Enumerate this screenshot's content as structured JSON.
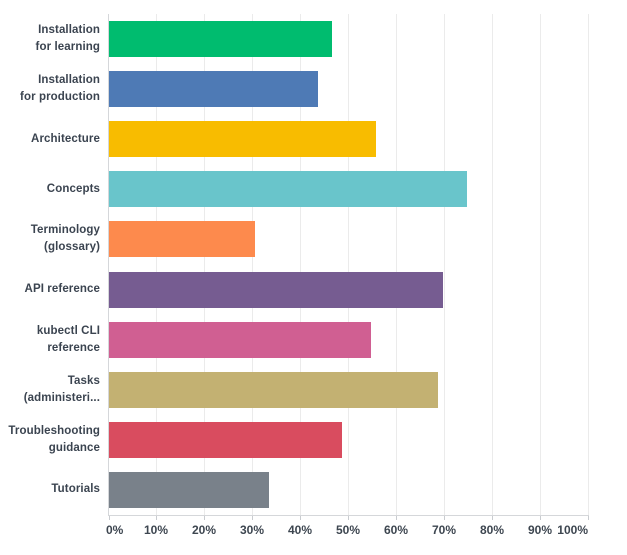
{
  "chart_data": {
    "type": "bar",
    "orientation": "horizontal",
    "title": "",
    "xlabel": "",
    "ylabel": "",
    "legend": "none",
    "grid": "vertical, every 10%",
    "xlim": [
      0,
      100
    ],
    "x_ticks": [
      "0%",
      "10%",
      "20%",
      "30%",
      "40%",
      "50%",
      "60%",
      "70%",
      "80%",
      "90%",
      "100%"
    ],
    "unit": "%",
    "categories": [
      "Installation for learning",
      "Installation for production",
      "Architecture",
      "Concepts",
      "Terminology (glossary)",
      "API reference",
      "kubectl CLI reference",
      "Tasks (administeri...",
      "Troubleshooting guidance",
      "Tutorials"
    ],
    "category_label_lines": [
      [
        "Installation",
        "for learning"
      ],
      [
        "Installation",
        "for production"
      ],
      [
        "Architecture"
      ],
      [
        "Concepts"
      ],
      [
        "Terminology",
        "(glossary)"
      ],
      [
        "API reference"
      ],
      [
        "kubectl CLI",
        "reference"
      ],
      [
        "Tasks",
        "(administeri..."
      ],
      [
        "Troubleshooting",
        "guidance"
      ],
      [
        "Tutorials"
      ]
    ],
    "values": [
      46.5,
      43.5,
      55.6,
      74.6,
      30.4,
      69.6,
      54.6,
      68.5,
      48.5,
      33.3
    ],
    "bar_colors": [
      "#00BC6F",
      "#4E7AB5",
      "#F8BC00",
      "#69C5CB",
      "#FD8A4D",
      "#765C91",
      "#D05F92",
      "#C3B172",
      "#D94C5F",
      "#79818A"
    ]
  },
  "style_colors": {
    "background": "#ffffff",
    "gridline": "#ebebeb",
    "axis_line": "#d5d7da",
    "tick_mark": "#c9ccd0",
    "category_label_text": "#3b4450",
    "tick_label_text": "#3d4650"
  }
}
